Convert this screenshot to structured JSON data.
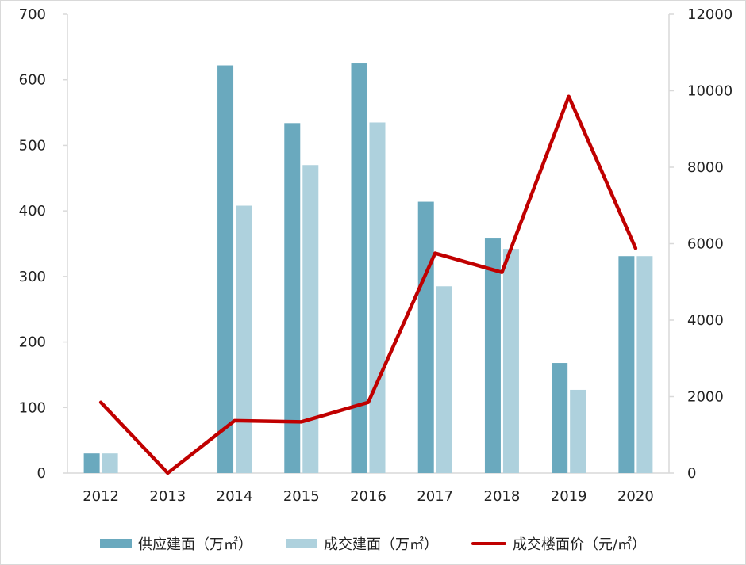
{
  "chart_data": {
    "type": "bar",
    "categories": [
      "2012",
      "2013",
      "2014",
      "2015",
      "2016",
      "2017",
      "2018",
      "2019",
      "2020"
    ],
    "series": [
      {
        "name": "供应建面（万㎡）",
        "type": "bar",
        "axis": "left",
        "color": "#6aa9be",
        "values": [
          30,
          0,
          622,
          534,
          625,
          414,
          359,
          168,
          331
        ]
      },
      {
        "name": "成交建面（万㎡）",
        "type": "bar",
        "axis": "left",
        "color": "#aed1dd",
        "values": [
          30,
          0,
          408,
          470,
          535,
          285,
          342,
          127,
          331
        ]
      },
      {
        "name": "成交楼面价（元/㎡）",
        "type": "line",
        "axis": "right",
        "color": "#c00000",
        "values": [
          1850,
          0,
          1370,
          1340,
          1850,
          5750,
          5250,
          9850,
          5880
        ]
      }
    ],
    "ylim_left": [
      0,
      700
    ],
    "ylim_right": [
      0,
      12000
    ],
    "yticks_left": [
      "0",
      "100",
      "200",
      "300",
      "400",
      "500",
      "600",
      "700"
    ],
    "yticks_right": [
      "0",
      "2000",
      "4000",
      "6000",
      "8000",
      "10000",
      "12000"
    ],
    "legend_position": "bottom",
    "grid": false
  }
}
